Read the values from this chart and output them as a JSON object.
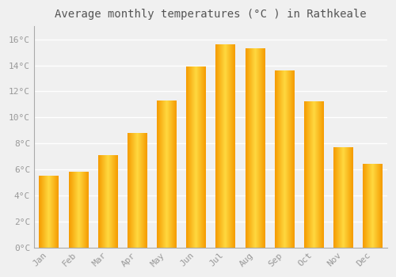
{
  "title": "Average monthly temperatures (°C ) in Rathkeale",
  "months": [
    "Jan",
    "Feb",
    "Mar",
    "Apr",
    "May",
    "Jun",
    "Jul",
    "Aug",
    "Sep",
    "Oct",
    "Nov",
    "Dec"
  ],
  "temperatures": [
    5.5,
    5.8,
    7.1,
    8.8,
    11.3,
    13.9,
    15.6,
    15.3,
    13.6,
    11.2,
    7.7,
    6.4
  ],
  "bar_color_center": "#FFD840",
  "bar_color_edge": "#F59B00",
  "ylim": [
    0,
    17
  ],
  "yticks": [
    0,
    2,
    4,
    6,
    8,
    10,
    12,
    14,
    16
  ],
  "background_color": "#F0F0F0",
  "grid_color": "#FFFFFF",
  "title_fontsize": 10,
  "tick_fontsize": 8,
  "font_family": "monospace",
  "tick_color": "#999999",
  "title_color": "#555555"
}
